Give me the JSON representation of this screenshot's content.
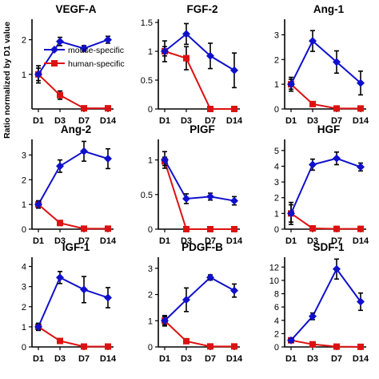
{
  "figure": {
    "ylabel": "Ratio normalized by D1 value",
    "legend": {
      "placement": "inside first panel, middle-right",
      "entries": [
        {
          "label": "mouse-specific",
          "color": "#1010cc",
          "marker": "diamond"
        },
        {
          "label": "human-specific",
          "color": "#dd1111",
          "marker": "square"
        }
      ]
    }
  },
  "colors": {
    "mouse": "#1010cc",
    "human": "#dd1111",
    "axis": "#000000"
  },
  "chart_data": [
    {
      "type": "line",
      "title": "VEGF-A",
      "categories": [
        "D1",
        "D3",
        "D7",
        "D14"
      ],
      "yticks": [
        {
          "v": 1,
          "label": "1"
        },
        {
          "v": 2,
          "label": "2"
        }
      ],
      "ylim": [
        0,
        2.5
      ],
      "series": [
        {
          "name": "mouse-specific",
          "values": [
            1.0,
            1.95,
            1.75,
            2.0
          ],
          "err": [
            0.25,
            0.12,
            0.08,
            0.1
          ]
        },
        {
          "name": "human-specific",
          "values": [
            1.0,
            0.4,
            0.02,
            0.02
          ],
          "err": [
            0.18,
            0.12,
            0.0,
            0.0
          ]
        }
      ]
    },
    {
      "type": "line",
      "title": "FGF-2",
      "categories": [
        "D1",
        "D3",
        "D7",
        "D14"
      ],
      "yticks": [
        {
          "v": 0,
          "label": "0"
        },
        {
          "v": 0.5,
          "label": "0.5"
        },
        {
          "v": 1,
          "label": "1"
        },
        {
          "v": 1.5,
          "label": "1.5"
        }
      ],
      "ylim": [
        0,
        1.5
      ],
      "series": [
        {
          "name": "mouse-specific",
          "values": [
            1.0,
            1.3,
            0.92,
            0.67
          ],
          "err": [
            0.18,
            0.18,
            0.22,
            0.3
          ]
        },
        {
          "name": "human-specific",
          "values": [
            1.0,
            0.88,
            0.0,
            0.0
          ],
          "err": [
            0.08,
            0.2,
            0.0,
            0.0
          ]
        }
      ]
    },
    {
      "type": "line",
      "title": "Ang-1",
      "categories": [
        "D1",
        "D3",
        "D7",
        "D14"
      ],
      "yticks": [
        {
          "v": 0,
          "label": "0"
        },
        {
          "v": 1,
          "label": "1"
        },
        {
          "v": 2,
          "label": "2"
        },
        {
          "v": 3,
          "label": "3"
        }
      ],
      "ylim": [
        0,
        3.5
      ],
      "series": [
        {
          "name": "mouse-specific",
          "values": [
            1.0,
            2.75,
            1.9,
            1.05
          ],
          "err": [
            0.28,
            0.42,
            0.45,
            0.48
          ]
        },
        {
          "name": "human-specific",
          "values": [
            1.0,
            0.2,
            0.02,
            0.02
          ],
          "err": [
            0.2,
            0.05,
            0.0,
            0.0
          ]
        }
      ]
    },
    {
      "type": "line",
      "title": "Ang-2",
      "categories": [
        "D1",
        "D3",
        "D7",
        "D14"
      ],
      "yticks": [
        {
          "v": 0,
          "label": "0"
        },
        {
          "v": 1,
          "label": "1"
        },
        {
          "v": 2,
          "label": "2"
        },
        {
          "v": 3,
          "label": "3"
        }
      ],
      "ylim": [
        0,
        3.5
      ],
      "series": [
        {
          "name": "mouse-specific",
          "values": [
            1.0,
            2.55,
            3.15,
            2.85
          ],
          "err": [
            0.15,
            0.25,
            0.4,
            0.4
          ]
        },
        {
          "name": "human-specific",
          "values": [
            1.0,
            0.25,
            0.02,
            0.02
          ],
          "err": [
            0.1,
            0.1,
            0.0,
            0.0
          ]
        }
      ]
    },
    {
      "type": "line",
      "title": "PlGF",
      "categories": [
        "D1",
        "D3",
        "D7",
        "D14"
      ],
      "yticks": [
        {
          "v": 0,
          "label": "0"
        },
        {
          "v": 0.5,
          "label": "0.5"
        },
        {
          "v": 1,
          "label": "1"
        }
      ],
      "ylim": [
        0,
        1.25
      ],
      "series": [
        {
          "name": "mouse-specific",
          "values": [
            1.0,
            0.44,
            0.47,
            0.41
          ],
          "err": [
            0.12,
            0.07,
            0.05,
            0.06
          ]
        },
        {
          "name": "human-specific",
          "values": [
            0.98,
            0.0,
            0.0,
            0.0
          ],
          "err": [
            0.06,
            0.0,
            0.0,
            0.0
          ]
        }
      ]
    },
    {
      "type": "line",
      "title": "HGF",
      "categories": [
        "D1",
        "D3",
        "D7",
        "D14"
      ],
      "yticks": [
        {
          "v": 0,
          "label": "0"
        },
        {
          "v": 1,
          "label": "1"
        },
        {
          "v": 2,
          "label": "2"
        },
        {
          "v": 3,
          "label": "3"
        },
        {
          "v": 4,
          "label": "4"
        },
        {
          "v": 5,
          "label": "5"
        }
      ],
      "ylim": [
        0,
        5.5
      ],
      "series": [
        {
          "name": "mouse-specific",
          "values": [
            1.0,
            4.1,
            4.5,
            3.95
          ],
          "err": [
            0.7,
            0.35,
            0.4,
            0.25
          ]
        },
        {
          "name": "human-specific",
          "values": [
            1.0,
            0.05,
            0.02,
            0.02
          ],
          "err": [
            0.55,
            0.0,
            0.0,
            0.0
          ]
        }
      ]
    },
    {
      "type": "line",
      "title": "IGF-1",
      "categories": [
        "D1",
        "D3",
        "D7",
        "D14"
      ],
      "yticks": [
        {
          "v": 0,
          "label": "0"
        },
        {
          "v": 1,
          "label": "1"
        },
        {
          "v": 2,
          "label": "2"
        },
        {
          "v": 3,
          "label": "3"
        },
        {
          "v": 4,
          "label": "4"
        }
      ],
      "ylim": [
        0,
        4.3
      ],
      "series": [
        {
          "name": "mouse-specific",
          "values": [
            1.0,
            3.45,
            2.85,
            2.45
          ],
          "err": [
            0.15,
            0.3,
            0.65,
            0.5
          ]
        },
        {
          "name": "human-specific",
          "values": [
            1.0,
            0.3,
            0.02,
            0.02
          ],
          "err": [
            0.18,
            0.08,
            0.0,
            0.0
          ]
        }
      ]
    },
    {
      "type": "line",
      "title": "PDGF-B",
      "categories": [
        "D1",
        "D3",
        "D7",
        "D14"
      ],
      "yticks": [
        {
          "v": 0,
          "label": "0"
        },
        {
          "v": 1,
          "label": "1"
        },
        {
          "v": 2,
          "label": "2"
        },
        {
          "v": 3,
          "label": "3"
        }
      ],
      "ylim": [
        0,
        3.3
      ],
      "series": [
        {
          "name": "mouse-specific",
          "values": [
            1.0,
            1.8,
            2.65,
            2.15
          ],
          "err": [
            0.2,
            0.45,
            0.1,
            0.25
          ]
        },
        {
          "name": "human-specific",
          "values": [
            1.0,
            0.22,
            0.02,
            0.02
          ],
          "err": [
            0.15,
            0.05,
            0.0,
            0.0
          ]
        }
      ]
    },
    {
      "type": "line",
      "title": "SDF-1",
      "categories": [
        "D1",
        "D3",
        "D7",
        "D14"
      ],
      "yticks": [
        {
          "v": 0,
          "label": "0"
        },
        {
          "v": 2,
          "label": "2"
        },
        {
          "v": 4,
          "label": "4"
        },
        {
          "v": 6,
          "label": "6"
        },
        {
          "v": 8,
          "label": "8"
        },
        {
          "v": 10,
          "label": "10"
        },
        {
          "v": 12,
          "label": "12"
        }
      ],
      "ylim": [
        0,
        13
      ],
      "series": [
        {
          "name": "mouse-specific",
          "values": [
            1.0,
            4.6,
            11.7,
            6.8
          ],
          "err": [
            0.3,
            0.5,
            1.5,
            1.3
          ]
        },
        {
          "name": "human-specific",
          "values": [
            1.0,
            0.4,
            0.05,
            0.02
          ],
          "err": [
            0.2,
            0.05,
            0.0,
            0.0
          ]
        }
      ]
    }
  ]
}
